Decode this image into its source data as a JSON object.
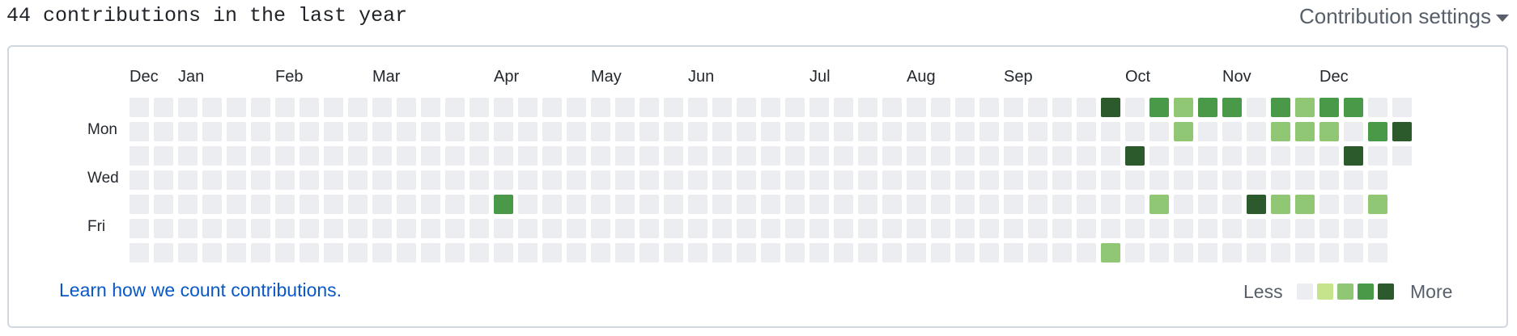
{
  "header": {
    "title": "44 contributions in the last year",
    "settings_label": "Contribution settings"
  },
  "months": [
    {
      "label": "Dec",
      "week": 0
    },
    {
      "label": "Jan",
      "week": 2
    },
    {
      "label": "Feb",
      "week": 6
    },
    {
      "label": "Mar",
      "week": 10
    },
    {
      "label": "Apr",
      "week": 15
    },
    {
      "label": "May",
      "week": 19
    },
    {
      "label": "Jun",
      "week": 23
    },
    {
      "label": "Jul",
      "week": 28
    },
    {
      "label": "Aug",
      "week": 32
    },
    {
      "label": "Sep",
      "week": 36
    },
    {
      "label": "Oct",
      "week": 41
    },
    {
      "label": "Nov",
      "week": 45
    },
    {
      "label": "Dec",
      "week": 49
    }
  ],
  "days": [
    {
      "label": "Mon",
      "row": 1
    },
    {
      "label": "Wed",
      "row": 3
    },
    {
      "label": "Fri",
      "row": 5
    }
  ],
  "colors": {
    "level0": "#ebedf0",
    "level1": "#c6e48b",
    "level2": "#8fc774",
    "level3": "#4a9948",
    "level4": "#2d5a2d"
  },
  "grid": {
    "weeks": 53,
    "last_week_days": 3,
    "contributions": [
      {
        "week": 15,
        "day": 4,
        "level": 3
      },
      {
        "week": 40,
        "day": 0,
        "level": 4
      },
      {
        "week": 40,
        "day": 6,
        "level": 2
      },
      {
        "week": 41,
        "day": 2,
        "level": 4
      },
      {
        "week": 42,
        "day": 0,
        "level": 3
      },
      {
        "week": 42,
        "day": 4,
        "level": 2
      },
      {
        "week": 43,
        "day": 0,
        "level": 2
      },
      {
        "week": 43,
        "day": 1,
        "level": 2
      },
      {
        "week": 44,
        "day": 0,
        "level": 3
      },
      {
        "week": 45,
        "day": 0,
        "level": 3
      },
      {
        "week": 46,
        "day": 4,
        "level": 4
      },
      {
        "week": 47,
        "day": 0,
        "level": 3
      },
      {
        "week": 47,
        "day": 1,
        "level": 2
      },
      {
        "week": 47,
        "day": 4,
        "level": 2
      },
      {
        "week": 48,
        "day": 0,
        "level": 2
      },
      {
        "week": 48,
        "day": 1,
        "level": 2
      },
      {
        "week": 48,
        "day": 4,
        "level": 2
      },
      {
        "week": 49,
        "day": 0,
        "level": 3
      },
      {
        "week": 49,
        "day": 1,
        "level": 2
      },
      {
        "week": 50,
        "day": 0,
        "level": 3
      },
      {
        "week": 50,
        "day": 2,
        "level": 4
      },
      {
        "week": 51,
        "day": 1,
        "level": 3
      },
      {
        "week": 51,
        "day": 4,
        "level": 2
      },
      {
        "week": 52,
        "day": 1,
        "level": 4
      }
    ]
  },
  "footer": {
    "learn_link": "Learn how we count contributions.",
    "less_label": "Less",
    "more_label": "More"
  }
}
